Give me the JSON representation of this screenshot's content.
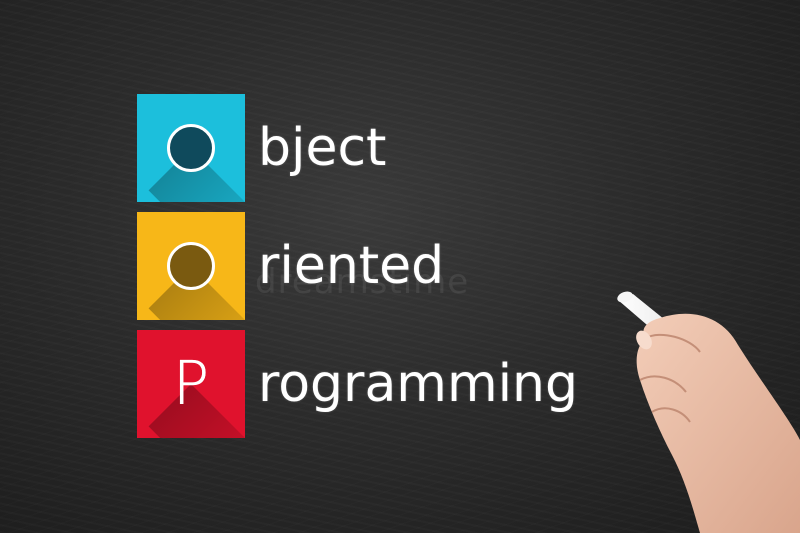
{
  "acronym": [
    {
      "letter": "O",
      "rest": "bject",
      "color": "#1cbfdc"
    },
    {
      "letter": "O",
      "rest": "riented",
      "color": "#f7b718"
    },
    {
      "letter": "P",
      "rest": "rogramming",
      "color": "#e0122d"
    }
  ],
  "watermark": "dreamstime",
  "colors": {
    "board": "#2b2b2b",
    "text": "#ffffff"
  }
}
